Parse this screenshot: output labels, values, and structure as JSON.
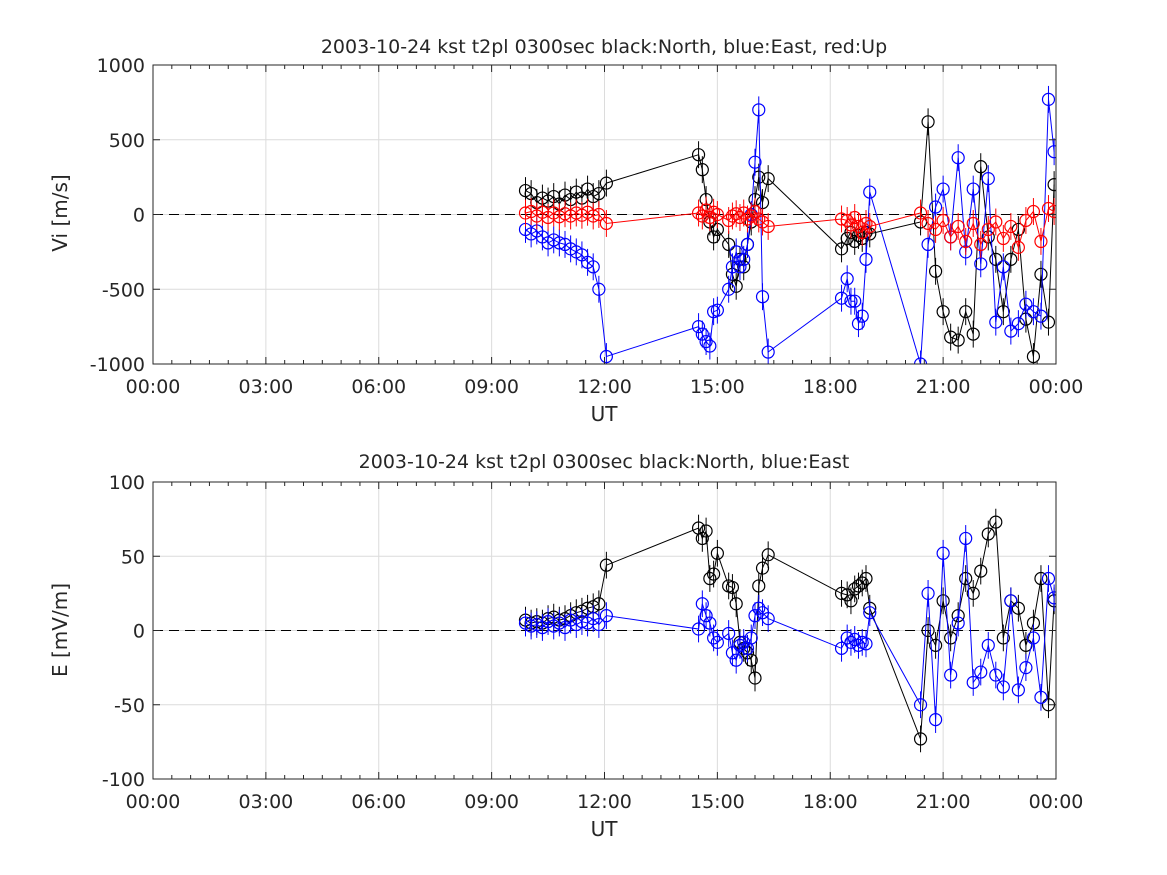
{
  "chart_data": [
    {
      "type": "line",
      "title": "2003-10-24 kst t2pl 0300sec black:North, blue:East, red:Up",
      "xlabel": "UT",
      "ylabel": "Vi [m/s]",
      "xlim": [
        0,
        24
      ],
      "ylim": [
        -1000,
        1000
      ],
      "xtick_labels": [
        "00:00",
        "03:00",
        "06:00",
        "09:00",
        "12:00",
        "15:00",
        "18:00",
        "21:00",
        "00:00"
      ],
      "ytick_labels": [
        "1000",
        "500",
        "0",
        "-500",
        "-1000"
      ],
      "ytick_values": [
        1000,
        500,
        0,
        -500,
        -1000
      ],
      "grid": true,
      "zero_line": "dashed",
      "x_unit": "hours UT",
      "series": [
        {
          "color": "#000000",
          "x": [
            9.9,
            10.05,
            10.2,
            10.35,
            10.5,
            10.65,
            10.8,
            10.95,
            11.1,
            11.25,
            11.4,
            11.55,
            11.7,
            11.85,
            12.05,
            14.5,
            14.6,
            14.7,
            14.8,
            14.9,
            15.0,
            15.3,
            15.4,
            15.5,
            15.6,
            15.7,
            15.8,
            15.9,
            16.0,
            16.1,
            16.2,
            16.35,
            18.3,
            18.45,
            18.55,
            18.65,
            18.75,
            18.85,
            18.95,
            19.05,
            20.4,
            20.6,
            20.8,
            21.0,
            21.2,
            21.4,
            21.6,
            21.8,
            22.0,
            22.2,
            22.4,
            22.6,
            22.8,
            23.0,
            23.2,
            23.4,
            23.6,
            23.8,
            23.95
          ],
          "y": [
            160,
            140,
            80,
            110,
            90,
            120,
            70,
            130,
            100,
            150,
            110,
            170,
            120,
            140,
            210,
            400,
            300,
            100,
            -50,
            -150,
            -100,
            -200,
            -400,
            -480,
            -300,
            -350,
            -200,
            -50,
            100,
            250,
            80,
            240,
            -230,
            -160,
            -120,
            -180,
            -140,
            -160,
            -120,
            -130,
            -50,
            620,
            -380,
            -650,
            -820,
            -840,
            -650,
            -800,
            320,
            -150,
            -300,
            -650,
            -300,
            -100,
            -700,
            -950,
            -400,
            -720,
            200
          ]
        },
        {
          "color": "#0000ff",
          "x": [
            9.9,
            10.05,
            10.2,
            10.35,
            10.5,
            10.65,
            10.8,
            10.95,
            11.1,
            11.25,
            11.4,
            11.55,
            11.7,
            11.85,
            12.05,
            14.5,
            14.6,
            14.7,
            14.8,
            14.9,
            15.0,
            15.3,
            15.4,
            15.5,
            15.6,
            15.7,
            15.8,
            15.9,
            16.0,
            16.1,
            16.2,
            16.35,
            18.3,
            18.45,
            18.55,
            18.65,
            18.75,
            18.85,
            18.95,
            19.05,
            20.4,
            20.6,
            20.8,
            21.0,
            21.2,
            21.4,
            21.6,
            21.8,
            22.0,
            22.2,
            22.4,
            22.6,
            22.8,
            23.0,
            23.2,
            23.4,
            23.6,
            23.8,
            23.95
          ],
          "y": [
            -100,
            -130,
            -110,
            -150,
            -190,
            -170,
            -190,
            -200,
            -230,
            -250,
            -270,
            -320,
            -350,
            -500,
            -950,
            -750,
            -800,
            -850,
            -880,
            -650,
            -640,
            -500,
            -350,
            -250,
            -350,
            -300,
            -200,
            0,
            350,
            700,
            -550,
            -920,
            -560,
            -430,
            -580,
            -580,
            -730,
            -680,
            -300,
            150,
            -1000,
            -200,
            50,
            170,
            -150,
            380,
            -250,
            170,
            -330,
            240,
            -720,
            -350,
            -780,
            -730,
            -600,
            -650,
            -680,
            770,
            420
          ]
        },
        {
          "color": "#ff0000",
          "x": [
            9.9,
            10.05,
            10.2,
            10.35,
            10.5,
            10.65,
            10.8,
            10.95,
            11.1,
            11.25,
            11.4,
            11.55,
            11.7,
            11.85,
            12.05,
            14.5,
            14.6,
            14.7,
            14.8,
            14.9,
            15.0,
            15.3,
            15.4,
            15.5,
            15.6,
            15.7,
            15.8,
            15.9,
            16.0,
            16.1,
            16.2,
            16.35,
            18.3,
            18.45,
            18.55,
            18.65,
            18.75,
            18.85,
            18.95,
            19.05,
            20.4,
            20.6,
            20.8,
            21.0,
            21.2,
            21.4,
            21.6,
            21.8,
            22.0,
            22.2,
            22.4,
            22.6,
            22.8,
            23.0,
            23.2,
            23.4,
            23.6,
            23.8,
            23.95
          ],
          "y": [
            10,
            20,
            -10,
            15,
            -20,
            10,
            -15,
            5,
            -10,
            10,
            -5,
            15,
            -10,
            0,
            -60,
            10,
            -10,
            30,
            -20,
            15,
            0,
            -40,
            -10,
            5,
            -20,
            10,
            -30,
            -10,
            20,
            -30,
            -50,
            -80,
            -30,
            -40,
            -70,
            -20,
            -80,
            -120,
            -60,
            -80,
            10,
            -60,
            -100,
            -40,
            -150,
            -80,
            -180,
            -60,
            -200,
            -100,
            -50,
            -160,
            -80,
            -220,
            -40,
            20,
            -180,
            40,
            20
          ]
        }
      ]
    },
    {
      "type": "line",
      "title": "2003-10-24 kst t2pl 0300sec black:North, blue:East",
      "xlabel": "UT",
      "ylabel": "E [mV/m]",
      "xlim": [
        0,
        24
      ],
      "ylim": [
        -100,
        100
      ],
      "xtick_labels": [
        "00:00",
        "03:00",
        "06:00",
        "09:00",
        "12:00",
        "15:00",
        "18:00",
        "21:00",
        "00:00"
      ],
      "ytick_labels": [
        "100",
        "50",
        "0",
        "-50",
        "-100"
      ],
      "ytick_values": [
        100,
        50,
        0,
        -50,
        -100
      ],
      "grid": true,
      "zero_line": "dashed",
      "x_unit": "hours UT",
      "series": [
        {
          "color": "#000000",
          "x": [
            9.9,
            10.05,
            10.2,
            10.35,
            10.5,
            10.65,
            10.8,
            10.95,
            11.1,
            11.25,
            11.4,
            11.55,
            11.7,
            11.85,
            12.05,
            14.5,
            14.6,
            14.7,
            14.8,
            14.9,
            15.0,
            15.3,
            15.4,
            15.5,
            15.6,
            15.7,
            15.8,
            15.9,
            16.0,
            16.1,
            16.2,
            16.35,
            18.3,
            18.45,
            18.55,
            18.65,
            18.75,
            18.85,
            18.95,
            19.05,
            20.4,
            20.6,
            20.8,
            21.0,
            21.2,
            21.4,
            21.6,
            21.8,
            22.0,
            22.2,
            22.4,
            22.6,
            22.8,
            23.0,
            23.2,
            23.4,
            23.6,
            23.8,
            23.95
          ],
          "y": [
            7,
            5,
            6,
            5,
            8,
            9,
            7,
            8,
            10,
            12,
            13,
            15,
            16,
            18,
            44,
            69,
            62,
            67,
            35,
            38,
            52,
            30,
            29,
            18,
            -8,
            -12,
            -15,
            -20,
            -32,
            30,
            42,
            51,
            25,
            24,
            20,
            28,
            30,
            32,
            35,
            15,
            -73,
            0,
            -10,
            20,
            -5,
            10,
            35,
            25,
            40,
            65,
            73,
            -5,
            20,
            15,
            -10,
            5,
            35,
            -50,
            20
          ]
        },
        {
          "color": "#0000ff",
          "x": [
            9.9,
            10.05,
            10.2,
            10.35,
            10.5,
            10.65,
            10.8,
            10.95,
            11.1,
            11.25,
            11.4,
            11.55,
            11.7,
            11.85,
            12.05,
            14.5,
            14.6,
            14.7,
            14.8,
            14.9,
            15.0,
            15.3,
            15.4,
            15.5,
            15.6,
            15.7,
            15.8,
            15.9,
            16.0,
            16.1,
            16.2,
            16.35,
            18.3,
            18.45,
            18.55,
            18.65,
            18.75,
            18.85,
            18.95,
            19.05,
            20.4,
            20.6,
            20.8,
            21.0,
            21.2,
            21.4,
            21.6,
            21.8,
            22.0,
            22.2,
            22.4,
            22.6,
            22.8,
            23.0,
            23.2,
            23.4,
            23.6,
            23.8,
            23.95
          ],
          "y": [
            5,
            3,
            4,
            2,
            6,
            3,
            5,
            2,
            7,
            4,
            6,
            5,
            8,
            4,
            10,
            1,
            18,
            10,
            5,
            -5,
            -8,
            -2,
            -15,
            -20,
            -10,
            -8,
            -12,
            -5,
            10,
            15,
            12,
            8,
            -12,
            -5,
            -8,
            -6,
            -10,
            -8,
            -9,
            12,
            -50,
            25,
            -60,
            52,
            -30,
            5,
            62,
            -35,
            -28,
            -10,
            -30,
            -38,
            20,
            -40,
            -25,
            -5,
            -45,
            35,
            22
          ]
        }
      ]
    }
  ]
}
